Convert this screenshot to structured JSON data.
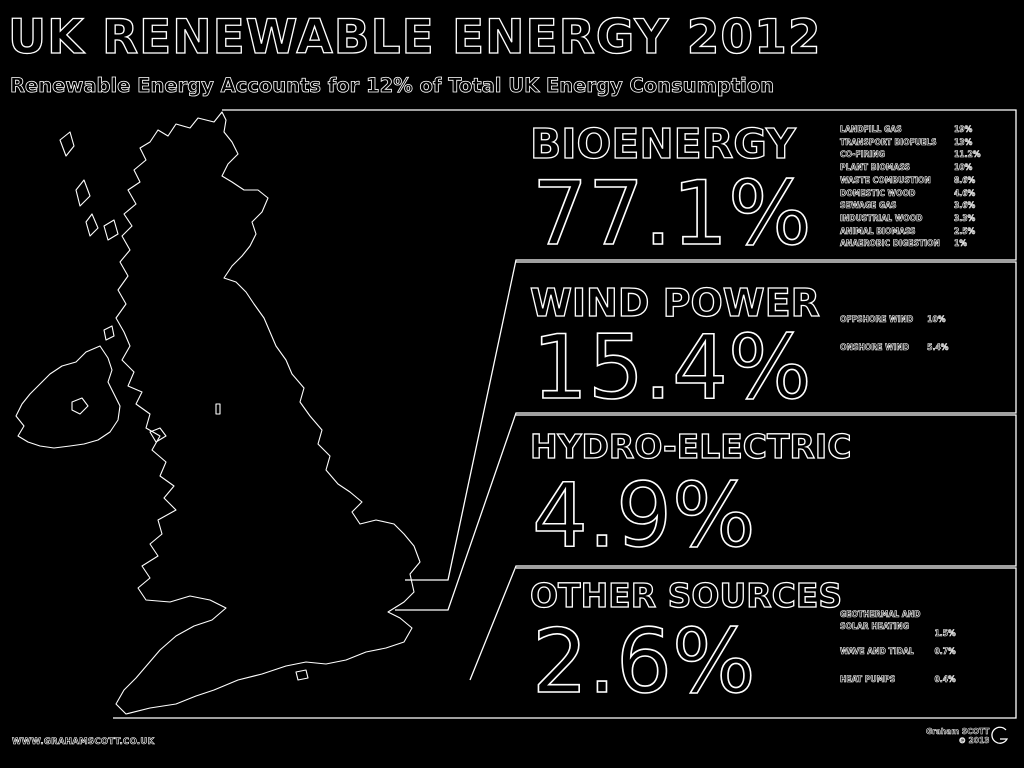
{
  "title": "UK RENEWABLE ENERGY 2012",
  "subtitle": "Renewable Energy Accounts for 12% of Total UK Energy Consumption",
  "categories": [
    {
      "name": "BIOENERGY",
      "percent": "77.1%",
      "items": [
        {
          "label": "LANDFILL GAS",
          "value": "19%"
        },
        {
          "label": "TRANSPORT BIOFUELS",
          "value": "13%"
        },
        {
          "label": "CO-FIRING",
          "value": "11.2%"
        },
        {
          "label": "PLANT BIOMASS",
          "value": "10%"
        },
        {
          "label": "WASTE COMBUSTION",
          "value": "8.6%"
        },
        {
          "label": "DOMESTIC WOOD",
          "value": "4.6%"
        },
        {
          "label": "SEWAGE GAS",
          "value": "3.6%"
        },
        {
          "label": "INDUSTRIAL WOOD",
          "value": "3.3%"
        },
        {
          "label": "ANIMAL BIOMASS",
          "value": "2.5%"
        },
        {
          "label": "ANAEROBIC DIGESTION",
          "value": "1%"
        }
      ]
    },
    {
      "name": "WIND POWER",
      "percent": "15.4%",
      "items": [
        {
          "label": "OFFSHORE WIND",
          "value": "10%"
        },
        {
          "label": "ONSHORE WIND",
          "value": "5.4%"
        }
      ]
    },
    {
      "name": "HYDRO-ELECTRIC",
      "percent": "4.9%",
      "items": []
    },
    {
      "name": "OTHER SOURCES",
      "percent": "2.6%",
      "items": [
        {
          "label": "GEOTHERMAL AND\nSOLAR HEATING",
          "value": "1.5%"
        },
        {
          "label": "WAVE AND TIDAL",
          "value": "0.7%"
        },
        {
          "label": "HEAT PUMPS",
          "value": "0.4%"
        }
      ]
    }
  ],
  "footer": {
    "url": "WWW.GRAHAMSCOTT.CO.UK",
    "credit_name": "Graham SCOTT",
    "credit_year": "© 2013"
  }
}
